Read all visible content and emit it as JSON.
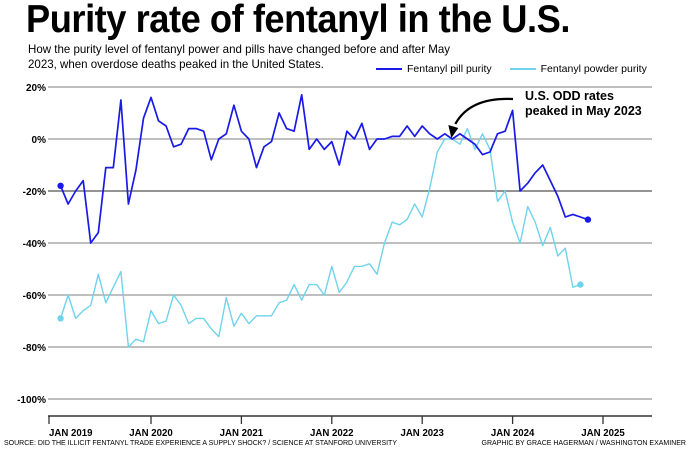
{
  "title": "Purity rate of fentanyl in the U.S.",
  "subtitle": "How the purity level of fentanyl power and pills have changed before and after May 2023, when overdose deaths peaked in the United States.",
  "source": "SOURCE: DID THE ILLICIT FENTANYL TRADE EXPERIENCE A SUPPLY SHOCK? / SCIENCE AT STANFORD UNIVERSITY",
  "credit": "GRAPHIC BY GRACE HAGERMAN / WASHINGTON EXAMINER",
  "chart_data": {
    "type": "line",
    "title": "Purity rate of fentanyl in the U.S.",
    "xlabel": "",
    "ylabel": "",
    "x_start": "2019-01",
    "x_interval": "month",
    "xlim": [
      "2019-01",
      "2025-08"
    ],
    "ylim": [
      -100,
      20
    ],
    "y_ticks": [
      20,
      0,
      -20,
      -40,
      -60,
      -80,
      -100
    ],
    "y_tick_labels": [
      "20%",
      "0%",
      "-20%",
      "-40%",
      "-60%",
      "-80%",
      "-100%"
    ],
    "x_ticks": [
      "2019-01",
      "2020-01",
      "2021-01",
      "2022-01",
      "2023-01",
      "2024-01",
      "2025-01"
    ],
    "x_tick_labels": [
      "JAN 2019",
      "JAN 2020",
      "JAN 2021",
      "JAN 2022",
      "JAN 2023",
      "JAN 2024",
      "JAN 2025"
    ],
    "grid": true,
    "legend_position": "top-right",
    "series": [
      {
        "name": "Fentanyl pill purity",
        "color": "#1a1ae6",
        "values": [
          -18,
          -25,
          -20,
          -16,
          -40,
          -36,
          -11,
          -11,
          15,
          -25,
          -12,
          8,
          16,
          7,
          5,
          -3,
          -2,
          4,
          4,
          3,
          -8,
          0,
          2,
          13,
          3,
          0,
          -11,
          -3,
          -1,
          10,
          4,
          3,
          17,
          -4,
          0,
          -4,
          -1,
          -10,
          3,
          0,
          6,
          -4,
          0,
          0,
          1,
          1,
          5,
          1,
          5,
          2,
          0,
          2,
          0,
          2,
          0,
          -2,
          -6,
          -5,
          2,
          3,
          11,
          -20,
          -17,
          -13,
          -10,
          -16,
          -22,
          -30,
          -29,
          -30,
          -31
        ]
      },
      {
        "name": "Fentanyl powder purity",
        "color": "#6fd3ec",
        "values": [
          -69,
          -60,
          -69,
          -66,
          -64,
          -52,
          -63,
          -57,
          -51,
          -80,
          -77,
          -78,
          -66,
          -71,
          -70,
          -60,
          -64,
          -71,
          -69,
          -69,
          -73,
          -76,
          -61,
          -72,
          -67,
          -71,
          -68,
          -68,
          -68,
          -63,
          -62,
          -56,
          -62,
          -56,
          -56,
          -60,
          -49,
          -59,
          -55,
          -49,
          -49,
          -48,
          -52,
          -40,
          -32,
          -33,
          -31,
          -25,
          -30,
          -19,
          -5,
          0,
          0,
          -2,
          4,
          -4,
          2,
          -4,
          -24,
          -20,
          -32,
          -40,
          -26,
          -32,
          -41,
          -34,
          -45,
          -42,
          -57,
          -56
        ]
      }
    ],
    "annotation": {
      "text_line1": "U.S. ODD rates",
      "text_line2": "peaked in May 2023",
      "points_to": "2023-05"
    }
  }
}
